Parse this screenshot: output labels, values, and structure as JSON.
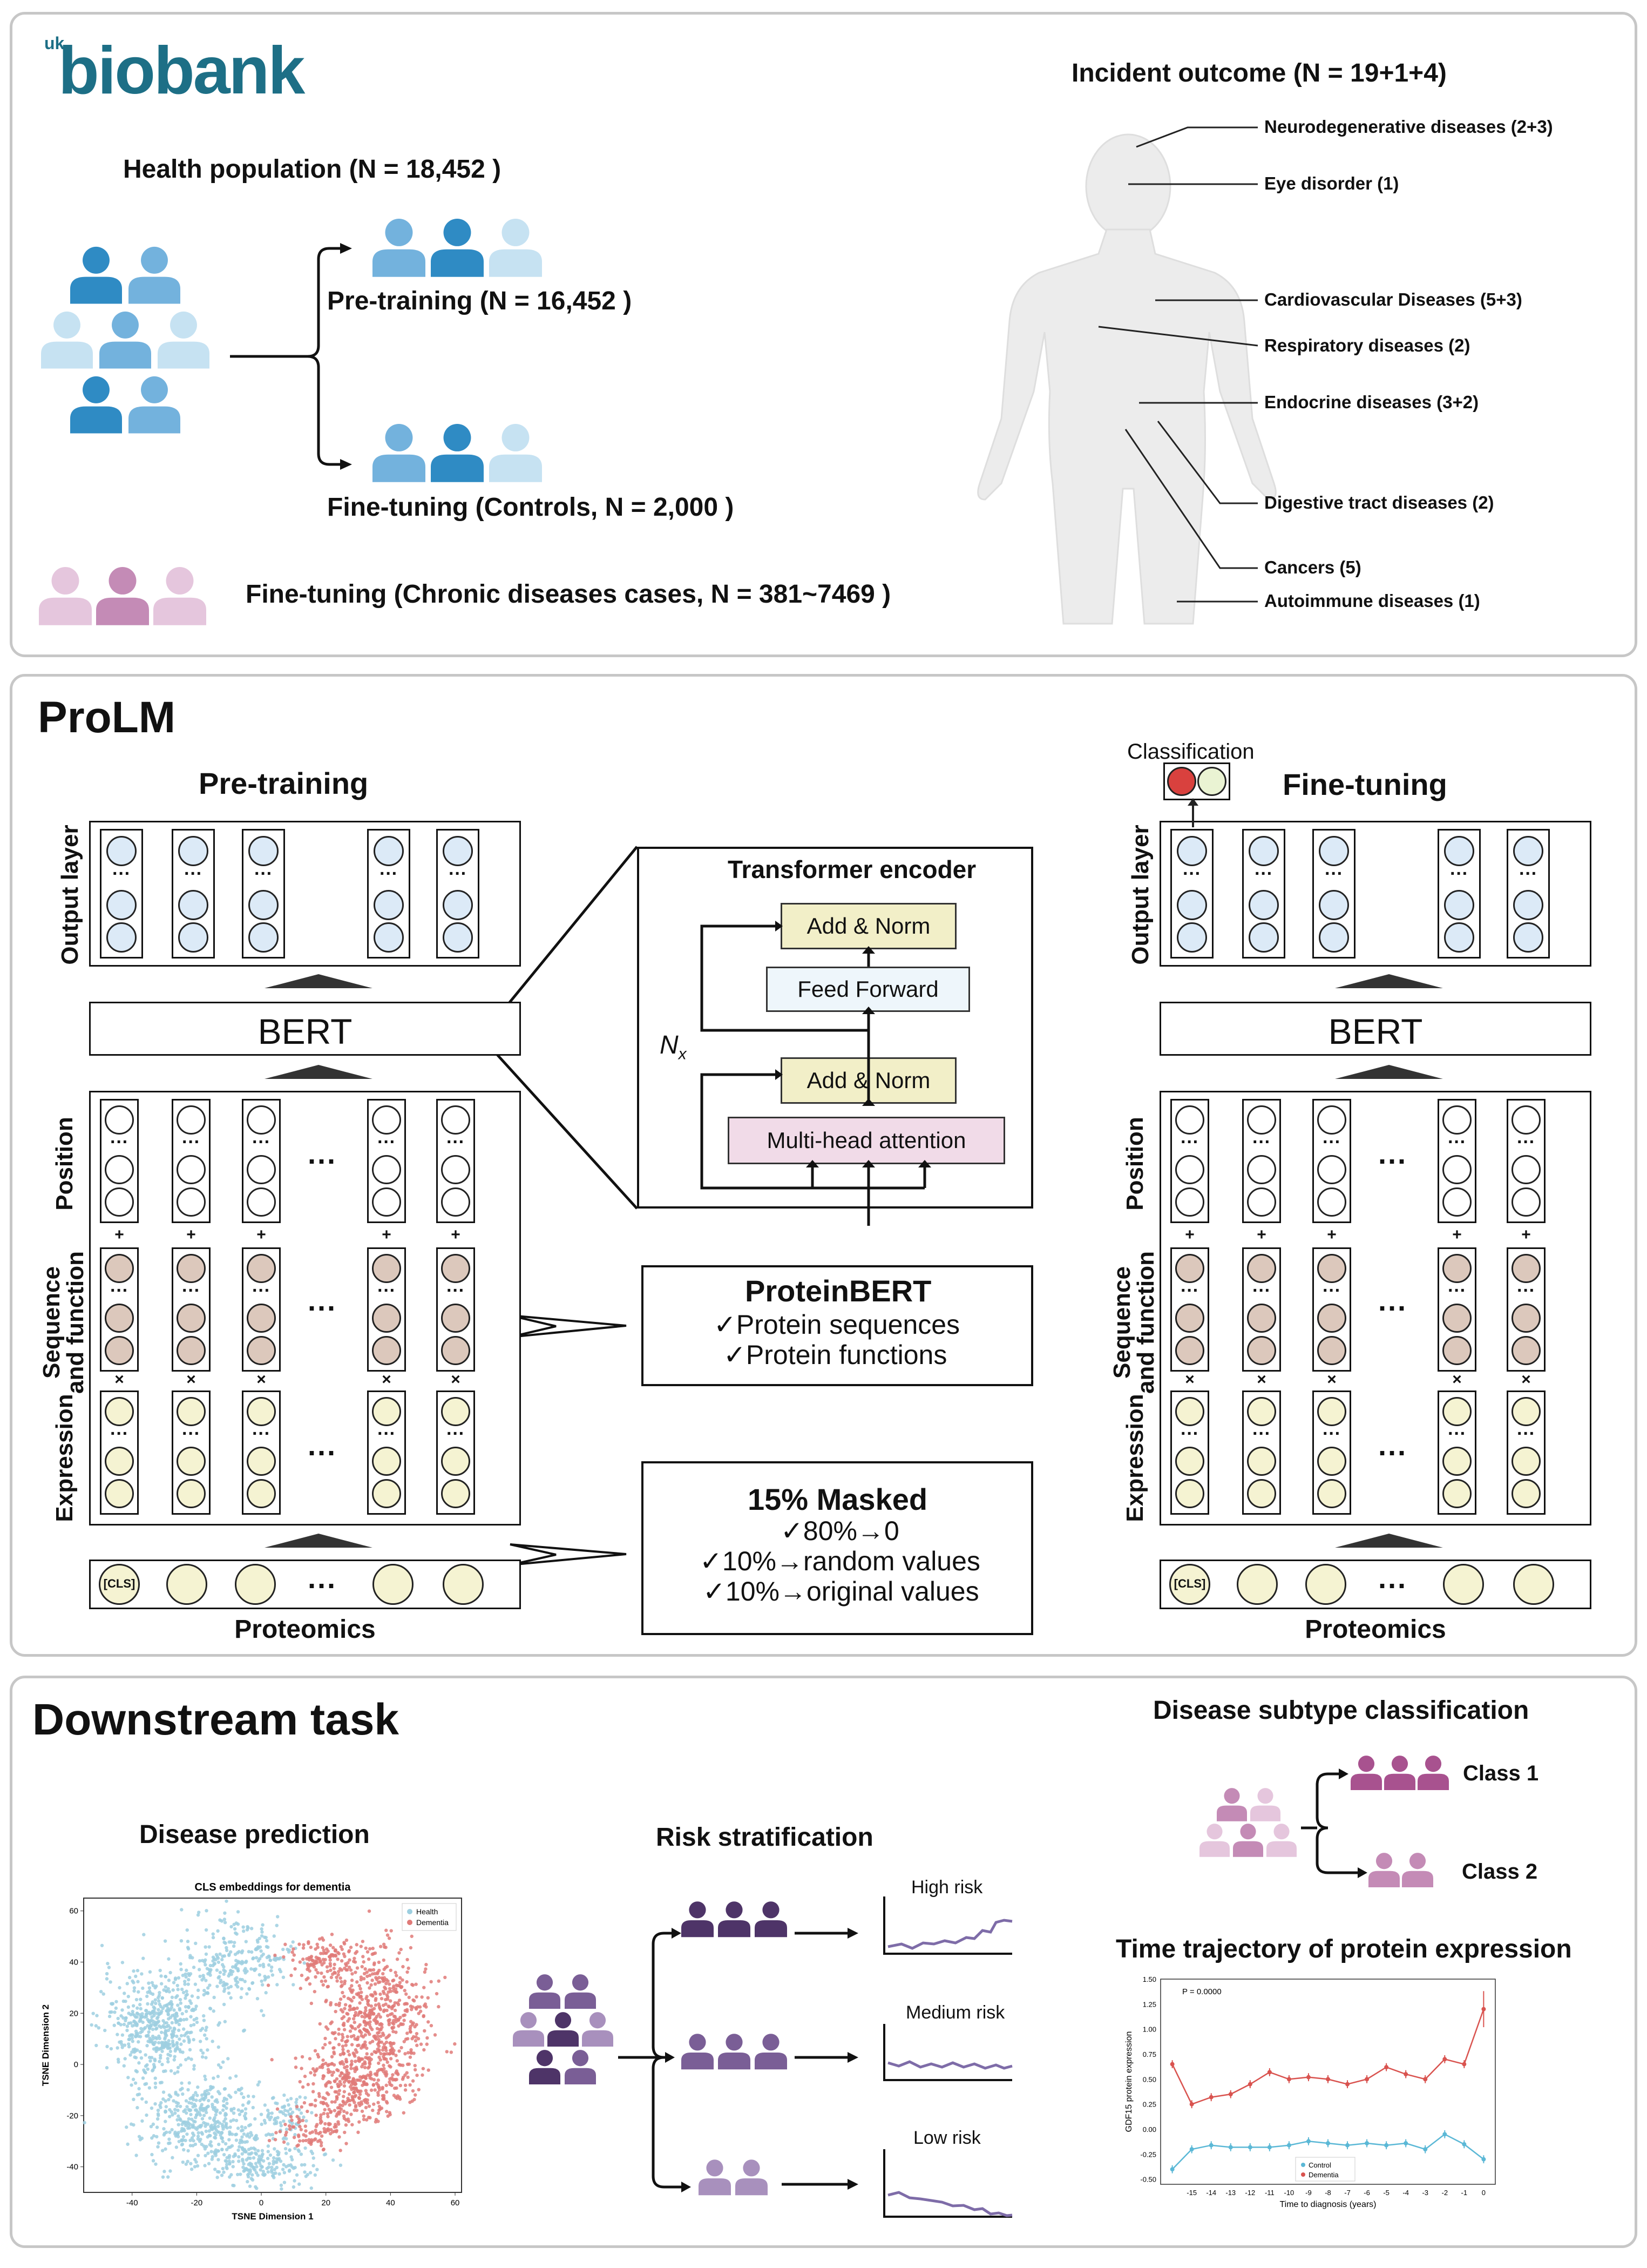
{
  "colors": {
    "person_blue_dark": "#2f8bc4",
    "person_blue_mid": "#73b2dd",
    "person_blue_light": "#c6e2f2",
    "person_pink_dark": "#c48bb6",
    "person_pink_light": "#e5c6dd",
    "person_purple_dark": "#4e3468",
    "person_purple_mid": "#7a5e96",
    "person_purple_light": "#a890bd",
    "health_point": "#9dcfe0",
    "dementia_point": "#e07a78",
    "output_circle": "#dceaf7",
    "seq_circle": "#dcc8bc",
    "expr_circle": "#f5f3d2",
    "add_norm_fill": "#f2efc8",
    "attention_fill": "#f1dbe8",
    "feed_forward_fill": "#eef6fb",
    "class_red": "#d9413e",
    "class_cream": "#eaf3d3"
  },
  "section1": {
    "logo_uk": "uk",
    "logo_main": "biobank",
    "health_population": "Health population (N =  18,452 )",
    "pretraining": "Pre-training (N =  16,452 )",
    "finetuning_controls": "Fine-tuning (Controls, N = 2,000 )",
    "finetuning_cases": "Fine-tuning (Chronic diseases cases, N = 381~7469 )",
    "incident_outcome": "Incident outcome (N = 19+1+4)",
    "outcomes": [
      "Neurodegenerative diseases (2+3)",
      "Eye disorder (1)",
      "Cardiovascular Diseases (5+3)",
      "Respiratory diseases (2)",
      "Endocrine diseases (3+2)",
      "Digestive tract diseases (2)",
      "Cancers (5)",
      "Autoimmune diseases (1)"
    ]
  },
  "section2": {
    "title": "ProLM",
    "pretraining_title": "Pre-training",
    "finetuning_title": "Fine-tuning",
    "output_layer": "Output layer",
    "bert": "BERT",
    "position": "Position",
    "sequence_function": "Sequence\nand function",
    "expression": "Expression",
    "proteomics": "Proteomics",
    "cls": "[CLS]",
    "ellipsis": "···",
    "vdots": "···",
    "plus": "+",
    "times": "×",
    "classification": "Classification",
    "transformer": {
      "title": "Transformer encoder",
      "add_norm": "Add & Norm",
      "feed_forward": "Feed Forward",
      "attention": "Multi-head attention",
      "nx": "N",
      "nx_sub": "x"
    },
    "proteinbert": {
      "title": "ProteinBERT",
      "items": [
        "✓Protein sequences",
        "✓Protein functions"
      ]
    },
    "masked": {
      "title": "15% Masked",
      "items": [
        "✓80%→0",
        "✓10%→random values",
        "✓10%→original values"
      ]
    }
  },
  "section3": {
    "title": "Downstream task",
    "disease_prediction": "Disease prediction",
    "risk_stratification": "Risk stratification",
    "subtype_title": "Disease subtype classification",
    "trajectory_title": "Time trajectory of  protein expression",
    "class1": "Class 1",
    "class2": "Class 2",
    "risk_levels": [
      "High risk",
      "Medium risk",
      "Low risk"
    ]
  },
  "chart_data": [
    {
      "type": "scatter",
      "title": "CLS embeddings for dementia",
      "xlabel": "TSNE Dimension 1",
      "ylabel": "TSNE Dimension 2",
      "xlim": [
        -55,
        62
      ],
      "ylim": [
        -50,
        65
      ],
      "xticks": [
        "-40",
        "-20",
        "0",
        "20",
        "40",
        "60"
      ],
      "yticks": [
        "60",
        "40",
        "20",
        "0",
        "-20",
        "-40"
      ],
      "legend": [
        "Health",
        "Dementia"
      ],
      "legend_position": "top-right",
      "series": [
        {
          "name": "Health",
          "clusters": [
            [
              -32,
              15,
              14,
              18,
              520
            ],
            [
              -18,
              -22,
              16,
              14,
              420
            ],
            [
              -8,
              40,
              14,
              14,
              260
            ],
            [
              0,
              -38,
              14,
              8,
              200
            ],
            [
              8,
              -20,
              8,
              6,
              60
            ]
          ]
        },
        {
          "name": "Dementia",
          "clusters": [
            [
              37,
              20,
              13,
              20,
              520
            ],
            [
              28,
              -8,
              14,
              14,
              380
            ],
            [
              20,
              40,
              10,
              8,
              140
            ],
            [
              15,
              -25,
              10,
              8,
              90
            ]
          ]
        }
      ]
    },
    {
      "type": "line",
      "annotation": "P = 0.0000",
      "xlabel": "Time to diagnosis (years)",
      "ylabel": "GDF15 protein expression",
      "x": [
        -16,
        -15,
        -14,
        -13,
        -12,
        -11,
        -10,
        -9,
        -8,
        -7,
        -6,
        -5,
        -4,
        -3,
        -2,
        -1,
        0
      ],
      "xticks": [
        "-15",
        "-14",
        "-13",
        "-12",
        "-11",
        "-10",
        "-9",
        "-8",
        "-7",
        "-6",
        "-5",
        "-4",
        "-3",
        "-2",
        "-1",
        "0"
      ],
      "yticks": [
        "1.50",
        "1.25",
        "1.00",
        "0.75",
        "0.50",
        "0.25",
        "0.00",
        "-0.25",
        "-0.50"
      ],
      "ylim": [
        -0.55,
        1.5
      ],
      "legend": [
        "Control",
        "Dementia"
      ],
      "legend_position": "bottom-center",
      "series": [
        {
          "name": "Control",
          "values": [
            -0.4,
            -0.2,
            -0.16,
            -0.18,
            -0.18,
            -0.18,
            -0.16,
            -0.12,
            -0.14,
            -0.16,
            -0.14,
            -0.16,
            -0.14,
            -0.2,
            -0.05,
            -0.15,
            -0.3
          ]
        },
        {
          "name": "Dementia",
          "values": [
            0.65,
            0.25,
            0.32,
            0.35,
            0.45,
            0.57,
            0.5,
            0.52,
            0.5,
            0.45,
            0.5,
            0.62,
            0.55,
            0.5,
            0.7,
            0.65,
            1.2
          ]
        }
      ]
    }
  ]
}
